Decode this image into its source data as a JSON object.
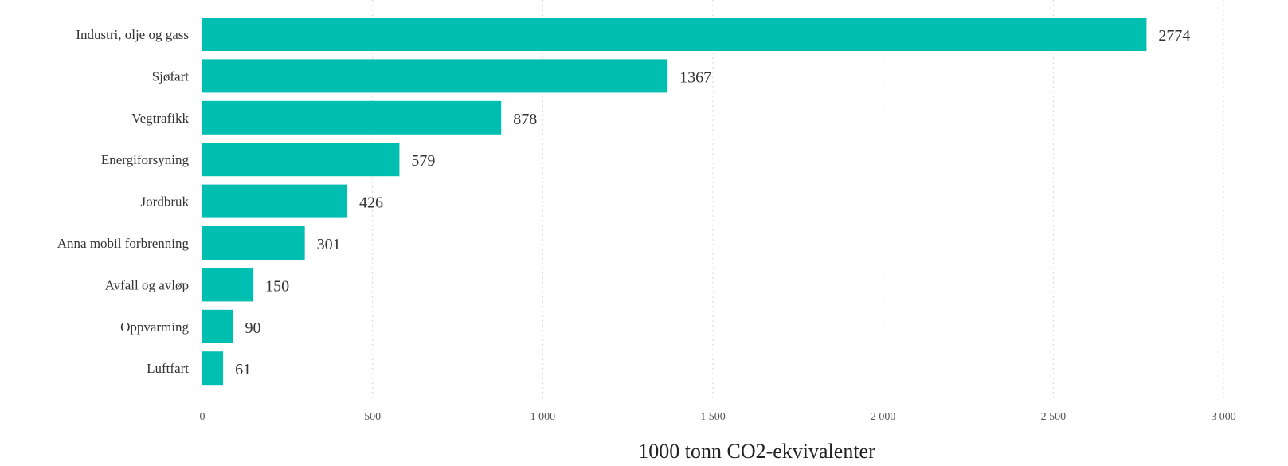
{
  "chart_data": {
    "type": "bar",
    "orientation": "horizontal",
    "categories": [
      "Industri, olje og gass",
      "Sjøfart",
      "Vegtrafikk",
      "Energiforsyning",
      "Jordbruk",
      "Anna mobil forbrenning",
      "Avfall og avløp",
      "Oppvarming",
      "Luftfart"
    ],
    "values": [
      2774,
      1367,
      878,
      579,
      426,
      301,
      150,
      90,
      61
    ],
    "value_labels": [
      "2774",
      "1367",
      "878",
      "579",
      "426",
      "301",
      "150",
      "90",
      "61"
    ],
    "xlabel": "1000 tonn CO2-ekvivalenter",
    "ylabel": "",
    "xlim": [
      0,
      3000
    ],
    "xticks": [
      0,
      500,
      1000,
      1500,
      2000,
      2500,
      3000
    ],
    "xtick_labels": [
      "0",
      "500",
      "1 000",
      "1 500",
      "2 000",
      "2 500",
      "3 000"
    ],
    "grid": "vertical dotted",
    "legend": "none",
    "bar_color": "#00BFB0"
  }
}
